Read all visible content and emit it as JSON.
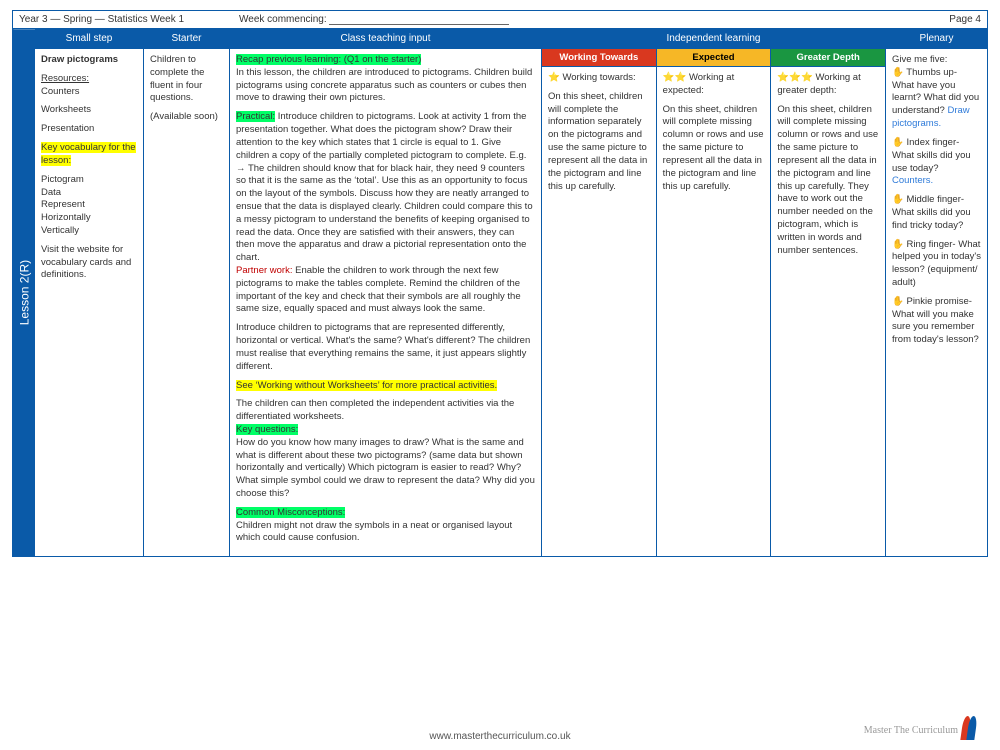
{
  "header": {
    "left": "Year 3 — Spring — Statistics Week 1",
    "mid_label": "Week commencing:",
    "right": "Page 4"
  },
  "lesson_tab": "Lesson 2(R)",
  "columns": {
    "small_step": "Small step",
    "starter": "Starter",
    "input": "Class teaching input",
    "independent": "Independent learning",
    "plenary": "Plenary"
  },
  "sub_headers": {
    "wt": "Working Towards",
    "exp": "Expected",
    "gd": "Greater Depth"
  },
  "small_step": {
    "title": "Draw pictograms",
    "resources_label": "Resources:",
    "resources": "Counters",
    "res2": "Worksheets",
    "res3": "Presentation",
    "vocab_label": "Key vocabulary for the lesson:",
    "vocab": "Pictogram\nData\nRepresent\nHorizontally\nVertically",
    "visit": "Visit the website for vocabulary cards and definitions."
  },
  "starter": {
    "text": "Children to complete the fluent in four questions.",
    "avail": "(Available soon)"
  },
  "input": {
    "recap": "Recap previous learning: (Q1 on the starter)",
    "p1": "In this lesson, the children are introduced to pictograms. Children build pictograms using concrete apparatus such as counters or cubes then move to drawing their own pictures.",
    "practical_label": "Practical:",
    "p2": "Introduce children to pictograms. Look at activity 1 from the presentation together. What does the pictogram show? Draw their attention to the key which states that 1 circle is equal to 1. Give children a copy of the partially completed pictogram to complete. E.g. → The children should know that for black hair, they need 9 counters so that it is the same as the ‘total’. Use this as an opportunity to focus on the layout of the symbols. Discuss how they are neatly arranged to ensue that the data is displayed clearly. Children could compare this to a messy pictogram to understand the benefits of keeping organised to read the data. Once they are satisfied with their answers, they can then move the apparatus and draw a pictorial representation onto the chart.",
    "partner_label": "Partner work:",
    "p3": " Enable the children to work through the next few pictograms to make the tables complete. Remind the children of the important of the key and check that their symbols are all roughly the same size, equally spaced and must always look the same.",
    "p4": "Introduce children to pictograms that are represented differently, horizontal or vertical. What's the same? What's different? The children must realise that everything remains the same, it just appears slightly different.",
    "wws": "See ‘Working without Worksheets’ for more practical activities.",
    "p5": "The children can then completed the independent activities via the differentiated worksheets.",
    "kq_label": "Key questions:",
    "p6": "How do you know how many images to draw? What is the same and what is different about these two pictograms? (same data but shown horizontally and vertically) Which pictogram is easier to read? Why? What simple symbol could we draw to represent the data? Why did you choose this?",
    "cm_label": "Common Misconceptions:",
    "p7": "Children might not draw the symbols in a neat or organised layout which could cause confusion."
  },
  "wt": {
    "stars": "⭐",
    "label": " Working towards:",
    "text": "On this sheet, children will complete the information separately on the pictograms and use the same picture to represent all the data in the pictogram and line this up carefully."
  },
  "exp": {
    "stars": "⭐⭐",
    "label": " Working at expected:",
    "text": "On this sheet, children will complete missing column or rows and use the same picture to represent all the data in the pictogram and line this up carefully."
  },
  "gd": {
    "stars": "⭐⭐⭐",
    "label": " Working at greater depth:",
    "text": "On this sheet, children will complete missing column or rows and use the same picture to represent all the data in the pictogram and line this up carefully. They have to work out the number needed on the pictogram, which is written in words and number sentences."
  },
  "plenary": {
    "title": "Give me five:",
    "thumb": " Thumbs up- What have you learnt? What did you understand?",
    "thumb_ans": "Draw pictograms.",
    "index": " Index finger- What skills did you use today?",
    "index_ans": "Counters.",
    "middle": " Middle finger- What skills did you find tricky today?",
    "ring": " Ring finger- What helped you in today's lesson? (equipment/ adult)",
    "pinkie": " Pinkie promise- What will you make sure you remember from today's lesson?"
  },
  "footer": "www.masterthecurriculum.co.uk",
  "logo_text": "Master The Curriculum",
  "colors": {
    "brand_blue": "#0a5aa8",
    "hl_green": "#00ff66",
    "hl_yellow": "#ffff00",
    "red": "#d9381f",
    "amber": "#f6b726",
    "green": "#1a9641"
  }
}
